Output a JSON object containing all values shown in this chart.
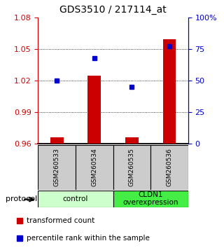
{
  "title": "GDS3510 / 217114_at",
  "samples": [
    "GSM260533",
    "GSM260534",
    "GSM260535",
    "GSM260536"
  ],
  "transformed_count": [
    0.966,
    1.025,
    0.966,
    1.059
  ],
  "percentile_rank_pct": [
    50,
    68,
    45,
    77
  ],
  "ylim": [
    0.96,
    1.08
  ],
  "yticks": [
    0.96,
    0.99,
    1.02,
    1.05,
    1.08
  ],
  "y2ticks": [
    0,
    25,
    50,
    75,
    100
  ],
  "y2tick_labels": [
    "0",
    "25",
    "50",
    "75",
    "100%"
  ],
  "dotted_lines": [
    1.05,
    1.02,
    0.99
  ],
  "bar_color": "#cc0000",
  "dot_color": "#0000cc",
  "bar_bottom": 0.96,
  "groups": [
    {
      "label": "control",
      "color": "#ccffcc",
      "start": 0,
      "end": 2
    },
    {
      "label": "CLDN1\noverexpression",
      "color": "#44ee44",
      "start": 2,
      "end": 4
    }
  ],
  "protocol_label": "protocol",
  "legend_bar_label": "transformed count",
  "legend_dot_label": "percentile rank within the sample",
  "title_fontsize": 10,
  "tick_fontsize": 8,
  "background_color": "#ffffff",
  "sample_label_bg": "#cccccc"
}
